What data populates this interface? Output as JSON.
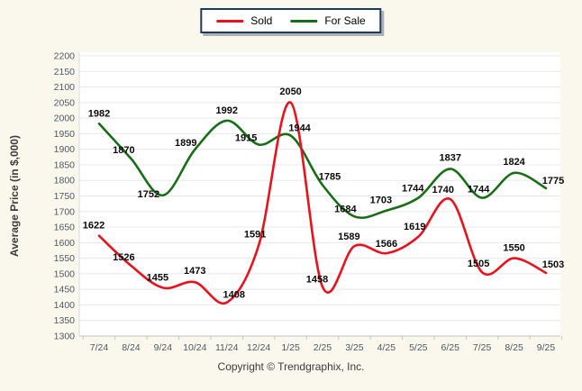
{
  "footer": {
    "copyright": "Copyright © Trendgraphix, Inc."
  },
  "chart_data": {
    "type": "line",
    "title": "",
    "xlabel": "",
    "ylabel": "Average Price (in $,000)",
    "ylim": [
      1300,
      2200
    ],
    "ytick_step": 50,
    "grid": true,
    "legend_position": "top-center",
    "categories": [
      "7/24",
      "8/24",
      "9/24",
      "10/24",
      "11/24",
      "12/24",
      "1/25",
      "2/25",
      "3/25",
      "4/25",
      "5/25",
      "6/25",
      "7/25",
      "8/25",
      "9/25"
    ],
    "series": [
      {
        "name": "Sold",
        "color": "#e8121d",
        "values": [
          1622,
          1526,
          1455,
          1473,
          1408,
          1591,
          2050,
          1458,
          1589,
          1566,
          1619,
          1740,
          1505,
          1550,
          1503
        ]
      },
      {
        "name": "For Sale",
        "color": "#176e17",
        "values": [
          1982,
          1870,
          1752,
          1899,
          1992,
          1915,
          1944,
          1785,
          1684,
          1703,
          1744,
          1837,
          1744,
          1824,
          1775
        ]
      }
    ],
    "colors": {
      "page_background": "#faf7ec",
      "plot_background": "#ffffff",
      "gridline": "#e8e8e8",
      "axis_line": "#c2c2c2",
      "tick_label": "#4d5965",
      "data_label": "#0a0a0a",
      "axis_title": "#3d3d3d",
      "legend_border": "#1b3a5c"
    }
  }
}
